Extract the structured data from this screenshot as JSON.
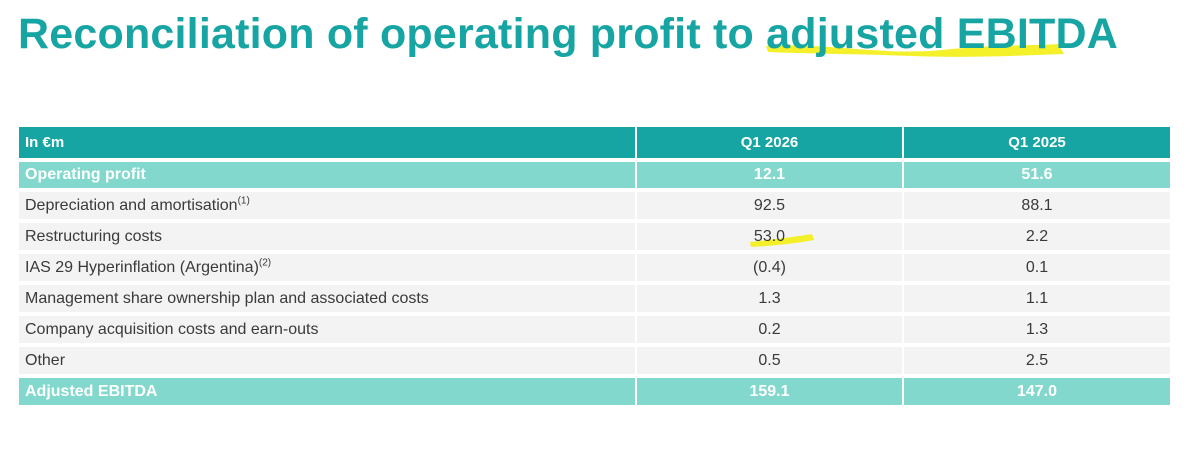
{
  "title": {
    "prefix": "Reconciliation of operating profit to ",
    "highlighted": "adjusted EBITDA",
    "highlight_color": "#f3f019"
  },
  "colors": {
    "title": "#17a5a3",
    "header_bg": "#17a5a3",
    "subtotal_bg": "#82d8cc",
    "row_bg": "#f3f3f3"
  },
  "table": {
    "columns": [
      "In €m",
      "Q1 2026",
      "Q1 2025"
    ],
    "operating_profit": {
      "label": "Operating profit",
      "q1_2026": "12.1",
      "q1_2025": "51.6"
    },
    "items": [
      {
        "label": "Depreciation and amortisation",
        "note": "(1)",
        "q1_2026": "92.5",
        "q1_2025": "88.1"
      },
      {
        "label": "Restructuring costs",
        "note": "",
        "q1_2026": "53.0",
        "q1_2025": "2.2"
      },
      {
        "label": "IAS 29 Hyperinflation (Argentina)",
        "note": "(2)",
        "q1_2026": "(0.4)",
        "q1_2025": "0.1"
      },
      {
        "label": "Management share ownership plan and associated costs",
        "note": "",
        "q1_2026": "1.3",
        "q1_2025": "1.1"
      },
      {
        "label": "Company acquisition costs and earn-outs",
        "note": "",
        "q1_2026": "0.2",
        "q1_2025": "1.3"
      },
      {
        "label": "Other",
        "note": "",
        "q1_2026": "0.5",
        "q1_2025": "2.5"
      }
    ],
    "adjusted_ebitda": {
      "label": "Adjusted EBITDA",
      "q1_2026": "159.1",
      "q1_2025": "147.0"
    }
  }
}
